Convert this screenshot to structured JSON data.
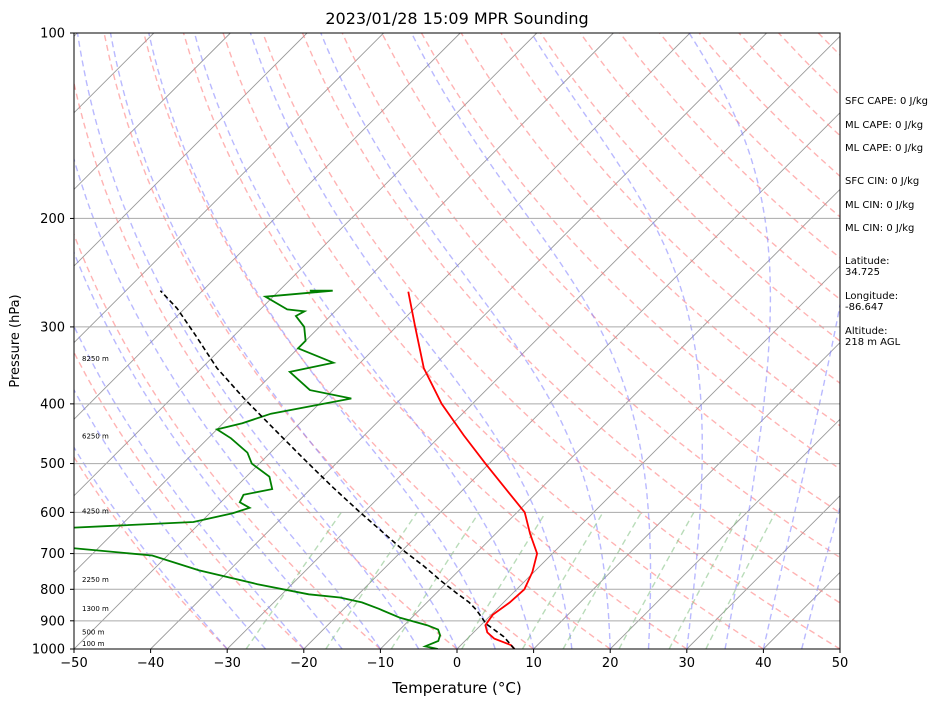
{
  "chart_data": {
    "type": "line",
    "title": "2023/01/28 15:09 MPR Sounding",
    "xlabel": "Temperature (°C)",
    "ylabel": "Pressure (hPa)",
    "xlim": [
      -50,
      50
    ],
    "ylim": [
      1000,
      100
    ],
    "y_scale": "log",
    "x_ticks": [
      "−50",
      "−40",
      "−30",
      "−20",
      "−10",
      "0",
      "10",
      "20",
      "30",
      "40",
      "50"
    ],
    "x_tick_values": [
      -50,
      -40,
      -30,
      -20,
      -10,
      0,
      10,
      20,
      30,
      40,
      50
    ],
    "y_ticks": [
      "100",
      "200",
      "300",
      "400",
      "500",
      "600",
      "700",
      "800",
      "900",
      "1000"
    ],
    "y_tick_values": [
      100,
      200,
      300,
      400,
      500,
      600,
      700,
      800,
      900,
      1000
    ],
    "grid": "horizontal at pressure ticks",
    "skew": "skew-T log-p",
    "series": [
      {
        "kind": "temperature",
        "color": "#ff0000",
        "points": [
          [
            7.5,
            1000
          ],
          [
            6.5,
            985
          ],
          [
            3.5,
            962
          ],
          [
            1.8,
            940
          ],
          [
            0.6,
            915
          ],
          [
            0.2,
            880
          ],
          [
            0.8,
            840
          ],
          [
            1.0,
            800
          ],
          [
            -0.2,
            750
          ],
          [
            -2.0,
            700
          ],
          [
            -5.5,
            650
          ],
          [
            -9.0,
            600
          ],
          [
            -14.5,
            550
          ],
          [
            -20.5,
            500
          ],
          [
            -27.0,
            450
          ],
          [
            -34.0,
            400
          ],
          [
            -41.0,
            350
          ],
          [
            -47.5,
            300
          ],
          [
            -53.0,
            263
          ]
        ]
      },
      {
        "kind": "dewpoint",
        "color": "#008000",
        "points": [
          [
            -2.5,
            1000
          ],
          [
            -4.5,
            990
          ],
          [
            -3.5,
            970
          ],
          [
            -4.0,
            950
          ],
          [
            -5.0,
            930
          ],
          [
            -7.0,
            915
          ],
          [
            -11.5,
            890
          ],
          [
            -15.5,
            860
          ],
          [
            -18.5,
            840
          ],
          [
            -22.0,
            825
          ],
          [
            -26.5,
            815
          ],
          [
            -34.5,
            785
          ],
          [
            -44.0,
            745
          ],
          [
            -52.0,
            705
          ],
          [
            -76.0,
            665
          ],
          [
            -82.0,
            650
          ],
          [
            -62.0,
            632
          ],
          [
            -51.0,
            622
          ],
          [
            -47.0,
            602
          ],
          [
            -45.5,
            590
          ],
          [
            -47.5,
            578
          ],
          [
            -48.0,
            562
          ],
          [
            -45.0,
            550
          ],
          [
            -47.0,
            525
          ],
          [
            -51.0,
            500
          ],
          [
            -53.0,
            480
          ],
          [
            -57.0,
            455
          ],
          [
            -60.0,
            440
          ],
          [
            -57.5,
            430
          ],
          [
            -55.0,
            415
          ],
          [
            -49.5,
            400
          ],
          [
            -46.5,
            392
          ],
          [
            -53.0,
            380
          ],
          [
            -58.0,
            355
          ],
          [
            -53.5,
            343
          ],
          [
            -60.0,
            325
          ],
          [
            -60.0,
            316
          ],
          [
            -62.0,
            300
          ],
          [
            -64.5,
            288
          ],
          [
            -64.0,
            283
          ],
          [
            -66.5,
            281
          ],
          [
            -71.0,
            268
          ],
          [
            -63.0,
            262
          ],
          [
            -66.0,
            262
          ]
        ]
      },
      {
        "kind": "parcel",
        "color": "#000000",
        "points": [
          [
            7.5,
            1000
          ],
          [
            4.5,
            955
          ],
          [
            0.5,
            910
          ],
          [
            -2.5,
            865
          ],
          [
            -4.5,
            840
          ],
          [
            -7.5,
            810
          ],
          [
            -11.0,
            775
          ],
          [
            -15.0,
            735
          ],
          [
            -19.5,
            695
          ],
          [
            -24.5,
            650
          ],
          [
            -30.5,
            600
          ],
          [
            -37.5,
            545
          ],
          [
            -45.0,
            490
          ],
          [
            -52.5,
            440
          ],
          [
            -60.5,
            392
          ],
          [
            -68.0,
            350
          ],
          [
            -75.0,
            310
          ],
          [
            -81.0,
            280
          ],
          [
            -85.5,
            262
          ]
        ]
      }
    ],
    "height_labels": [
      {
        "text": "100 m",
        "p": 988
      },
      {
        "text": "500 m",
        "p": 948
      },
      {
        "text": "1300 m",
        "p": 868
      },
      {
        "text": "2250 m",
        "p": 778
      },
      {
        "text": "4250 m",
        "p": 603
      },
      {
        "text": "6250 m",
        "p": 455
      },
      {
        "text": "8250 m",
        "p": 341
      }
    ],
    "stats": [
      "SFC CAPE: 0 J/kg",
      "ML CAPE: 0 J/kg",
      "ML CAPE: 0 J/kg",
      "SFC CIN: 0 J/kg",
      "ML CIN: 0 J/kg",
      "ML CIN: 0 J/kg"
    ],
    "location": {
      "latitude_label": "Latitude:",
      "latitude": "34.725",
      "longitude_label": "Longitude:",
      "longitude": "-86.647",
      "altitude_label": "Altitude:",
      "altitude": "218 m AGL"
    },
    "reference_lines": {
      "isotherm_color": "#999999",
      "dry_adiabat_color": "#ff8080",
      "moist_adiabat_color": "#8080ff",
      "mixing_ratio_color": "#80c080"
    }
  }
}
